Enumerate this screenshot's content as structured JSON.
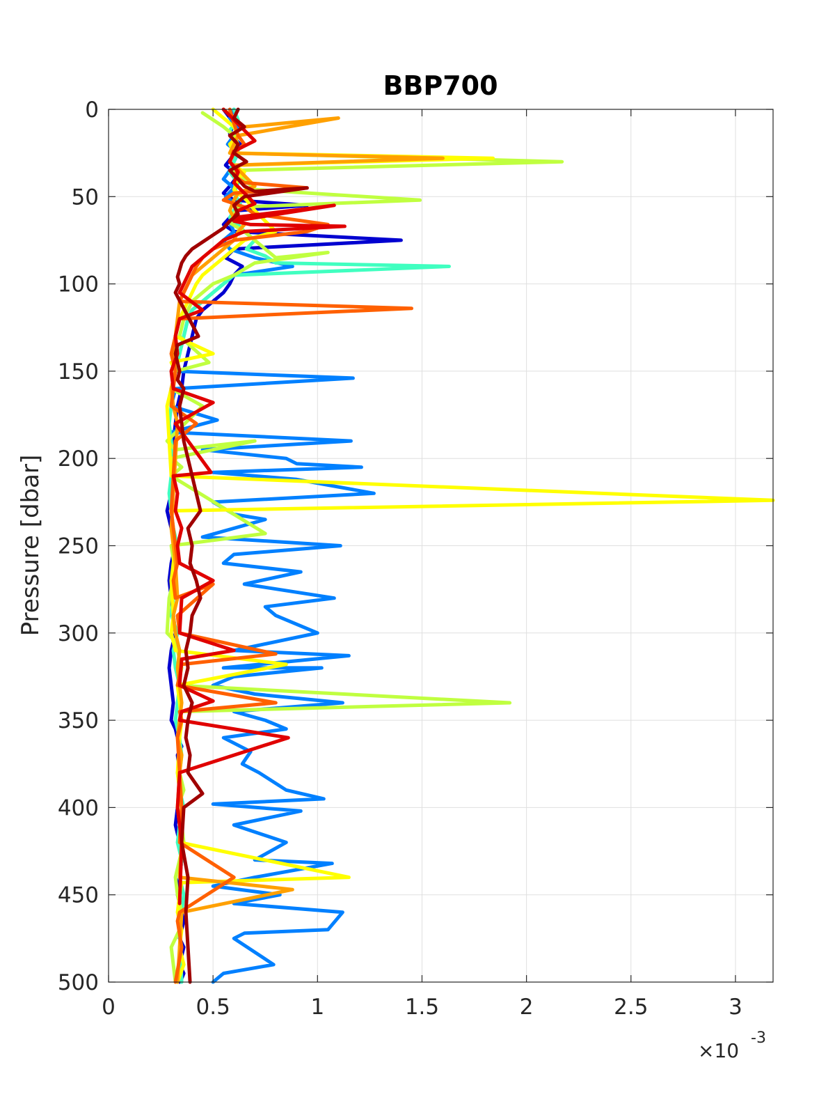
{
  "chart_data": {
    "type": "line",
    "title": "BBP700",
    "xlabel": "",
    "ylabel": "Pressure [dbar]",
    "x_exponent_label": {
      "base": "×10",
      "exponent": "-3"
    },
    "x_scale_factor": 0.001,
    "xlim": [
      0,
      3.18
    ],
    "ylim": [
      0,
      500
    ],
    "y_reversed": true,
    "grid": true,
    "x_ticks": [
      0,
      0.5,
      1,
      1.5,
      2,
      2.5,
      3
    ],
    "x_tick_labels": [
      "0",
      "0.5",
      "1",
      "1.5",
      "2",
      "2.5",
      "3"
    ],
    "y_ticks": [
      0,
      50,
      100,
      150,
      200,
      250,
      300,
      350,
      400,
      450,
      500
    ],
    "y_tick_labels": [
      "0",
      "50",
      "100",
      "150",
      "200",
      "250",
      "300",
      "350",
      "400",
      "450",
      "500"
    ],
    "series": [
      {
        "color": "#0000d0",
        "x": [
          0.55,
          0.6,
          0.58,
          0.63,
          0.6,
          0.56,
          0.62,
          0.58,
          0.55,
          0.6,
          0.95,
          0.62,
          0.58,
          0.55,
          0.6,
          1.4,
          0.6,
          0.56,
          0.64,
          0.6,
          0.58,
          0.55,
          0.5,
          0.45,
          0.42,
          0.4,
          0.38,
          0.36,
          0.35,
          0.33,
          0.32,
          0.31,
          0.3,
          0.32,
          0.3,
          0.28,
          0.3,
          0.32,
          0.3,
          0.29,
          0.3,
          0.31,
          0.32,
          0.3,
          0.29,
          0.3,
          0.31,
          0.3,
          0.32,
          0.33,
          0.35,
          0.33,
          0.34,
          0.35,
          0.33,
          0.32,
          0.34,
          0.35,
          0.34,
          0.33,
          0.34,
          0.35,
          0.36,
          0.35,
          0.34,
          0.36,
          0.35,
          0.34,
          0.36,
          0.35,
          0.34
        ],
        "y": [
          0,
          8,
          14,
          20,
          26,
          32,
          38,
          44,
          48,
          52,
          55,
          58,
          62,
          66,
          70,
          75,
          80,
          85,
          90,
          95,
          100,
          105,
          110,
          115,
          120,
          130,
          140,
          150,
          160,
          170,
          180,
          190,
          200,
          210,
          220,
          230,
          240,
          250,
          260,
          270,
          280,
          290,
          300,
          310,
          320,
          330,
          340,
          350,
          355,
          360,
          365,
          370,
          380,
          390,
          400,
          410,
          420,
          430,
          440,
          450,
          455,
          460,
          465,
          470,
          475,
          480,
          485,
          490,
          495,
          498,
          500
        ]
      },
      {
        "color": "#0080ff",
        "x": [
          0.6,
          0.58,
          0.62,
          0.6,
          0.57,
          0.62,
          0.6,
          0.58,
          0.55,
          0.6,
          0.56,
          0.62,
          0.6,
          0.58,
          0.6,
          0.55,
          0.58,
          0.7,
          0.88,
          0.6,
          0.55,
          0.5,
          0.45,
          0.4,
          0.38,
          0.36,
          0.34,
          0.32,
          1.17,
          0.32,
          0.3,
          0.52,
          0.3,
          1.16,
          0.45,
          0.85,
          0.9,
          1.21,
          0.5,
          0.9,
          1.27,
          0.5,
          0.6,
          0.75,
          0.45,
          1.11,
          0.6,
          0.55,
          0.92,
          0.65,
          1.08,
          0.75,
          0.8,
          1.0,
          0.6,
          1.15,
          0.55,
          1.02,
          0.6,
          0.5,
          0.7,
          1.12,
          0.6,
          0.75,
          0.85,
          0.55,
          0.68,
          0.64,
          0.72,
          0.85,
          1.03,
          0.5,
          0.92,
          0.6,
          0.85,
          0.7,
          1.07,
          0.7,
          0.5,
          0.82,
          0.6,
          1.12,
          1.05,
          0.65,
          0.6,
          0.79,
          0.55,
          0.5
        ],
        "y": [
          0,
          5,
          10,
          15,
          20,
          25,
          30,
          35,
          40,
          45,
          50,
          55,
          60,
          65,
          70,
          75,
          80,
          85,
          90,
          95,
          100,
          105,
          110,
          115,
          120,
          130,
          140,
          150,
          154,
          160,
          170,
          178,
          185,
          190,
          195,
          200,
          203,
          205,
          208,
          212,
          220,
          225,
          232,
          235,
          245,
          250,
          255,
          260,
          265,
          272,
          280,
          285,
          290,
          300,
          310,
          313,
          320,
          320,
          325,
          330,
          335,
          340,
          345,
          350,
          355,
          360,
          368,
          375,
          380,
          390,
          395,
          398,
          402,
          410,
          420,
          430,
          432,
          440,
          445,
          450,
          455,
          460,
          470,
          472,
          475,
          490,
          495,
          500
        ]
      },
      {
        "color": "#40ffc0",
        "x": [
          0.6,
          0.62,
          0.58,
          0.6,
          0.62,
          0.6,
          0.58,
          0.62,
          0.6,
          0.63,
          0.6,
          0.58,
          0.62,
          0.65,
          0.7,
          0.66,
          0.75,
          0.8,
          1.63,
          0.6,
          0.55,
          0.5,
          0.45,
          0.4,
          0.38,
          0.36,
          0.34,
          0.32,
          0.3,
          0.3,
          0.29,
          0.3,
          0.31,
          0.3,
          0.29,
          0.3,
          0.31,
          0.33,
          0.32,
          0.3,
          0.31,
          0.3,
          0.33,
          0.31,
          0.32,
          0.34,
          0.33,
          0.32,
          0.34,
          0.35,
          0.33,
          0.34,
          0.36,
          0.34,
          0.33,
          0.35,
          0.34,
          0.36,
          0.35,
          0.34,
          0.35
        ],
        "y": [
          0,
          6,
          12,
          18,
          24,
          30,
          36,
          42,
          48,
          54,
          58,
          62,
          66,
          70,
          75,
          80,
          84,
          88,
          90,
          95,
          100,
          105,
          110,
          115,
          120,
          130,
          140,
          150,
          160,
          170,
          180,
          190,
          200,
          210,
          220,
          230,
          240,
          250,
          260,
          270,
          280,
          290,
          300,
          310,
          320,
          330,
          340,
          350,
          360,
          370,
          380,
          390,
          400,
          410,
          420,
          430,
          440,
          450,
          460,
          470,
          500
        ]
      },
      {
        "color": "#c0ff40",
        "x": [
          0.45,
          0.5,
          0.55,
          0.6,
          0.62,
          0.58,
          2.17,
          0.6,
          0.65,
          0.7,
          1.49,
          0.62,
          0.6,
          0.58,
          0.65,
          0.7,
          0.75,
          0.8,
          1.05,
          0.7,
          0.6,
          0.5,
          0.45,
          0.4,
          0.36,
          0.34,
          0.48,
          0.32,
          0.3,
          0.45,
          0.28,
          0.32,
          0.7,
          0.3,
          0.35,
          0.3,
          0.75,
          0.3,
          0.32,
          0.29,
          0.28,
          0.32,
          0.35,
          0.33,
          1.92,
          0.35,
          0.34,
          0.33,
          0.35,
          0.34,
          0.36,
          0.33,
          0.35,
          0.36,
          0.34,
          0.32,
          0.33,
          0.35,
          0.34,
          0.3,
          0.32
        ],
        "y": [
          2,
          6,
          10,
          15,
          20,
          25,
          30,
          35,
          40,
          46,
          52,
          56,
          60,
          65,
          70,
          75,
          80,
          85,
          82,
          88,
          95,
          100,
          105,
          110,
          120,
          130,
          145,
          150,
          160,
          170,
          190,
          195,
          190,
          200,
          205,
          210,
          243,
          250,
          265,
          280,
          300,
          305,
          320,
          330,
          340,
          345,
          350,
          360,
          370,
          380,
          390,
          400,
          410,
          420,
          430,
          440,
          450,
          460,
          470,
          480,
          500
        ]
      },
      {
        "color": "#ffff00",
        "x": [
          0.5,
          0.55,
          0.6,
          0.62,
          0.58,
          0.6,
          1.84,
          0.6,
          0.65,
          0.62,
          0.6,
          0.66,
          0.7,
          0.75,
          0.8,
          0.65,
          0.6,
          0.55,
          0.5,
          0.45,
          0.42,
          0.4,
          0.38,
          0.36,
          0.34,
          0.32,
          0.5,
          0.3,
          0.32,
          0.3,
          0.28,
          0.3,
          3.18,
          0.3,
          0.32,
          0.3,
          0.31,
          0.3,
          0.32,
          0.85,
          0.33,
          0.34,
          0.35,
          0.34,
          0.33,
          0.35,
          0.34,
          1.15,
          0.35,
          0.34,
          0.33,
          0.35,
          0.34,
          0.36,
          0.33
        ],
        "y": [
          0,
          5,
          10,
          15,
          20,
          25,
          28,
          32,
          36,
          40,
          46,
          52,
          58,
          64,
          70,
          75,
          80,
          85,
          90,
          95,
          100,
          105,
          110,
          115,
          120,
          130,
          140,
          145,
          150,
          160,
          170,
          210,
          224,
          230,
          250,
          270,
          290,
          300,
          310,
          318,
          330,
          340,
          350,
          360,
          380,
          400,
          420,
          440,
          443,
          450,
          460,
          470,
          480,
          490,
          500
        ]
      },
      {
        "color": "#ffa000",
        "x": [
          0.55,
          0.6,
          0.65,
          1.1,
          0.62,
          0.6,
          0.58,
          1.6,
          0.6,
          0.65,
          0.7,
          0.62,
          0.6,
          0.58,
          0.6,
          0.65,
          0.62,
          0.6,
          0.55,
          0.5,
          0.45,
          0.4,
          0.38,
          0.36,
          0.34,
          0.33,
          0.32,
          0.31,
          0.32,
          0.3,
          0.31,
          0.33,
          0.32,
          0.31,
          0.3,
          0.32,
          0.33,
          0.31,
          0.32,
          0.34,
          0.33,
          0.34,
          0.35,
          0.34,
          0.33,
          0.35,
          0.34,
          0.33,
          0.35,
          0.34,
          0.88,
          0.35,
          0.34,
          0.33
        ],
        "y": [
          0,
          5,
          10,
          5,
          15,
          20,
          25,
          28,
          32,
          38,
          44,
          48,
          52,
          58,
          62,
          66,
          70,
          75,
          80,
          85,
          90,
          95,
          100,
          105,
          110,
          120,
          130,
          140,
          150,
          160,
          170,
          180,
          200,
          220,
          240,
          260,
          280,
          290,
          300,
          310,
          320,
          330,
          340,
          350,
          360,
          370,
          380,
          400,
          420,
          440,
          447,
          460,
          480,
          500
        ]
      },
      {
        "color": "#ff6000",
        "x": [
          0.58,
          0.6,
          0.62,
          0.65,
          0.6,
          0.58,
          0.62,
          0.6,
          0.65,
          0.95,
          0.6,
          0.55,
          0.65,
          0.7,
          1.05,
          0.95,
          0.6,
          0.5,
          0.45,
          0.42,
          0.4,
          0.38,
          0.36,
          0.34,
          1.45,
          0.34,
          0.32,
          0.3,
          0.32,
          0.31,
          0.3,
          0.42,
          0.32,
          0.31,
          0.3,
          0.32,
          0.33,
          0.31,
          0.32,
          0.5,
          0.33,
          0.34,
          0.8,
          0.35,
          0.33,
          0.8,
          0.34,
          0.35,
          0.33,
          0.34,
          0.35,
          0.34,
          0.6,
          0.34,
          0.33,
          0.35,
          0.32
        ],
        "y": [
          0,
          8,
          15,
          20,
          25,
          30,
          35,
          38,
          42,
          45,
          48,
          52,
          56,
          60,
          66,
          70,
          75,
          80,
          85,
          90,
          95,
          100,
          105,
          110,
          114,
          120,
          130,
          140,
          150,
          160,
          170,
          180,
          190,
          210,
          230,
          250,
          260,
          270,
          280,
          272,
          290,
          300,
          312,
          318,
          330,
          340,
          345,
          350,
          360,
          380,
          400,
          420,
          440,
          460,
          465,
          480,
          500
        ]
      },
      {
        "color": "#e00000",
        "x": [
          0.55,
          0.6,
          0.65,
          0.7,
          0.6,
          0.58,
          0.62,
          0.6,
          0.65,
          0.7,
          0.62,
          0.6,
          1.08,
          0.6,
          0.68,
          1.13,
          0.65,
          0.55,
          0.5,
          0.45,
          0.4,
          0.38,
          0.36,
          0.34,
          0.45,
          0.34,
          0.32,
          0.33,
          0.3,
          0.31,
          0.5,
          0.32,
          0.49,
          0.31,
          0.33,
          0.32,
          0.35,
          0.33,
          0.34,
          0.5,
          0.35,
          0.34,
          0.6,
          0.35,
          0.34,
          0.5,
          0.35,
          0.34,
          0.86,
          0.34,
          0.33,
          0.35,
          0.34
        ],
        "y": [
          0,
          6,
          12,
          18,
          24,
          30,
          36,
          42,
          48,
          54,
          58,
          62,
          55,
          64,
          66,
          67,
          70,
          75,
          80,
          85,
          90,
          95,
          100,
          105,
          115,
          120,
          130,
          140,
          150,
          160,
          168,
          180,
          208,
          210,
          220,
          230,
          240,
          250,
          260,
          270,
          280,
          300,
          310,
          315,
          330,
          339,
          345,
          350,
          360,
          380,
          400,
          420,
          455
        ]
      },
      {
        "color": "#a00000",
        "x": [
          0.62,
          0.6,
          0.65,
          0.58,
          0.62,
          0.6,
          0.66,
          0.58,
          0.62,
          0.65,
          0.7,
          0.95,
          0.65,
          0.6,
          0.62,
          0.58,
          0.55,
          0.5,
          0.45,
          0.4,
          0.37,
          0.35,
          0.34,
          0.33,
          0.34,
          0.32,
          0.43,
          0.33,
          0.32,
          0.34,
          0.33,
          0.36,
          0.34,
          0.35,
          0.36,
          0.38,
          0.4,
          0.42,
          0.44,
          0.38,
          0.4,
          0.39,
          0.42,
          0.44,
          0.4,
          0.39,
          0.37,
          0.38,
          0.36,
          0.4,
          0.38,
          0.37,
          0.39,
          0.38,
          0.45,
          0.36,
          0.35,
          0.38,
          0.37,
          0.39
        ],
        "y": [
          0,
          5,
          10,
          15,
          20,
          25,
          30,
          35,
          40,
          44,
          47,
          45,
          50,
          55,
          60,
          64,
          68,
          72,
          76,
          80,
          84,
          88,
          92,
          96,
          100,
          105,
          130,
          135,
          140,
          150,
          155,
          160,
          170,
          180,
          190,
          200,
          210,
          220,
          230,
          240,
          250,
          260,
          270,
          280,
          290,
          300,
          310,
          320,
          330,
          340,
          350,
          360,
          370,
          380,
          392,
          400,
          420,
          440,
          460,
          500
        ]
      }
    ]
  }
}
